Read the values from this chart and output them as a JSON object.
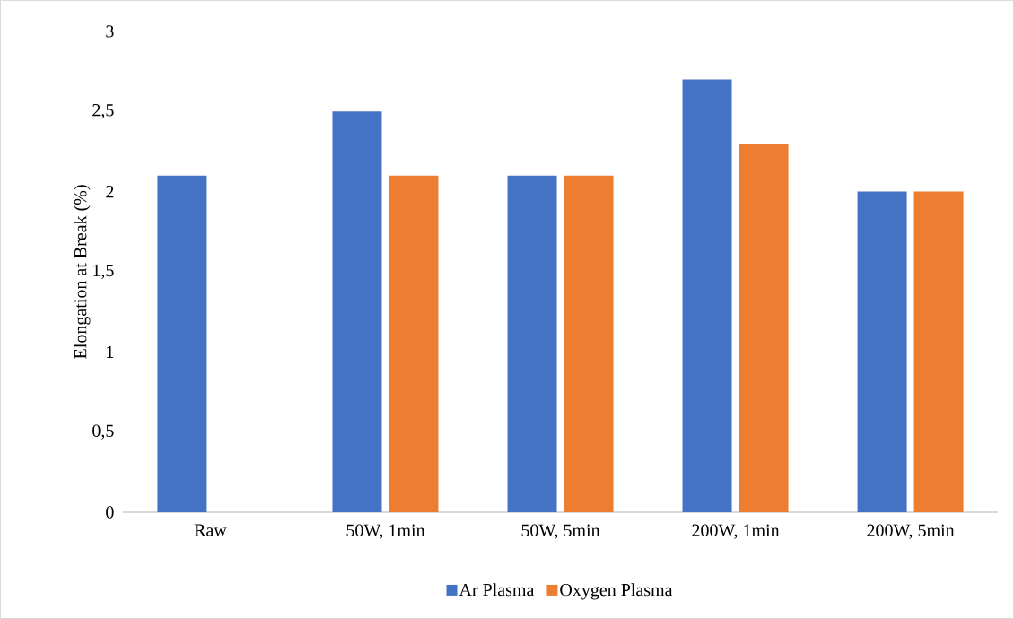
{
  "chart_data": {
    "type": "bar",
    "ylabel": "Elongation at Break (%)",
    "categories": [
      "Raw",
      "50W, 1min",
      "50W, 5min",
      "200W, 1min",
      "200W, 5min"
    ],
    "series": [
      {
        "name": "Ar Plasma",
        "color": "#4472c4",
        "values": [
          2.1,
          2.5,
          2.1,
          2.7,
          2.0
        ]
      },
      {
        "name": "Oxygen Plasma",
        "color": "#ed7d31",
        "values": [
          null,
          2.1,
          2.1,
          2.3,
          2.0
        ]
      }
    ],
    "ylim": [
      0,
      3
    ],
    "yticks": [
      0,
      {
        "value": 0.5,
        "label": "0,5"
      },
      1,
      {
        "value": 1.5,
        "label": "1,5"
      },
      2,
      {
        "value": 2.5,
        "label": "2,5"
      },
      3
    ],
    "grid": false,
    "legend": "bottom"
  }
}
